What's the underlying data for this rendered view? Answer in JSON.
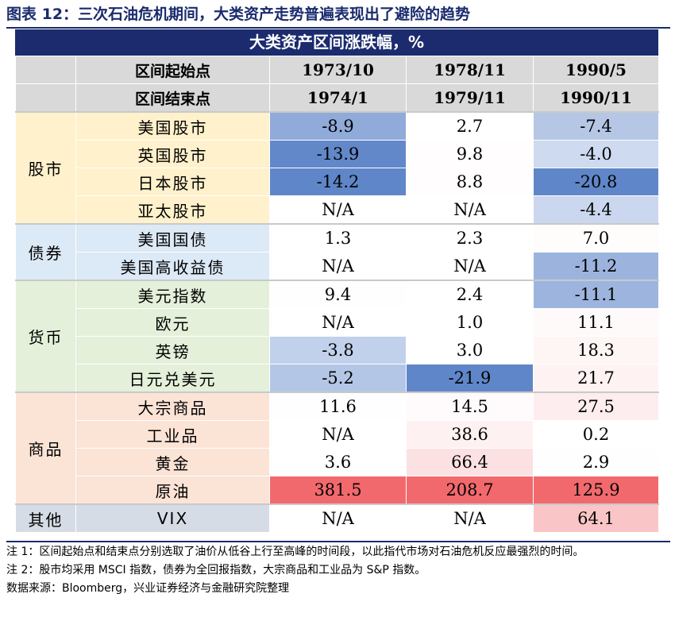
{
  "title": "图表 12：三次石油危机期间，大类资产走势普遍表现出了避险的趋势",
  "banner": "大类资产区间涨跌幅，%",
  "header": {
    "start_label": "区间起始点",
    "end_label": "区间结束点",
    "starts": [
      "1973/10",
      "1978/11",
      "1990/5"
    ],
    "ends": [
      "1974/1",
      "1979/11",
      "1990/11"
    ]
  },
  "groups": [
    {
      "label": "股市",
      "rows": [
        {
          "name": "美国股市",
          "values": [
            "-8.9",
            "2.7",
            "-7.4"
          ]
        },
        {
          "name": "英国股市",
          "values": [
            "-13.9",
            "9.8",
            "-4.0"
          ]
        },
        {
          "name": "日本股市",
          "values": [
            "-14.2",
            "8.8",
            "-20.8"
          ]
        },
        {
          "name": "亚太股市",
          "values": [
            "N/A",
            "N/A",
            "-4.4"
          ]
        }
      ]
    },
    {
      "label": "债券",
      "rows": [
        {
          "name": "美国国债",
          "values": [
            "1.3",
            "2.3",
            "7.0"
          ]
        },
        {
          "name": "美国高收益债",
          "values": [
            "N/A",
            "N/A",
            "-11.2"
          ]
        }
      ]
    },
    {
      "label": "货币",
      "rows": [
        {
          "name": "美元指数",
          "values": [
            "9.4",
            "2.4",
            "-11.1"
          ]
        },
        {
          "name": "欧元",
          "values": [
            "N/A",
            "1.0",
            "11.1"
          ]
        },
        {
          "name": "英镑",
          "values": [
            "-3.8",
            "3.0",
            "18.3"
          ]
        },
        {
          "name": "日元兑美元",
          "values": [
            "-5.2",
            "-21.9",
            "21.7"
          ]
        }
      ]
    },
    {
      "label": "商品",
      "rows": [
        {
          "name": "大宗商品",
          "values": [
            "11.6",
            "14.5",
            "27.5"
          ]
        },
        {
          "name": "工业品",
          "values": [
            "N/A",
            "38.6",
            "0.2"
          ]
        },
        {
          "name": "黄金",
          "values": [
            "3.6",
            "66.4",
            "2.9"
          ]
        },
        {
          "name": "原油",
          "values": [
            "381.5",
            "208.7",
            "125.9"
          ]
        }
      ]
    },
    {
      "label": "其他",
      "rows": [
        {
          "name": "VIX",
          "values": [
            "N/A",
            "N/A",
            "64.1"
          ]
        }
      ]
    }
  ],
  "notes": {
    "note1": "注 1：区间起始点和结束点分别选取了油价从低谷上行至高峰的时间段，以此指代市场对石油危机反应最强烈的时间。",
    "note2": "注 2：股市均采用 MSCI 指数，债券为全回报指数，大宗商品和工业品为 S&P 指数。",
    "source": "数据来源：Bloomberg，兴业证券经济与金融研究院整理"
  },
  "colors": {
    "title": "#1a2b6d",
    "banner_bg": "#1b2b6e",
    "header_bg": "#d9d9d9",
    "neg_strong": "#5f86c8",
    "neg_weak": "#eef2fa",
    "pos_strong": "#f0585d",
    "pos_weak": "#fdf3f3",
    "cat_stock": "#fff1cc",
    "cat_bond": "#dce9f6",
    "cat_fx": "#e4f0da",
    "cat_comm": "#fbe3d6",
    "cat_other": "#d6dce5"
  }
}
